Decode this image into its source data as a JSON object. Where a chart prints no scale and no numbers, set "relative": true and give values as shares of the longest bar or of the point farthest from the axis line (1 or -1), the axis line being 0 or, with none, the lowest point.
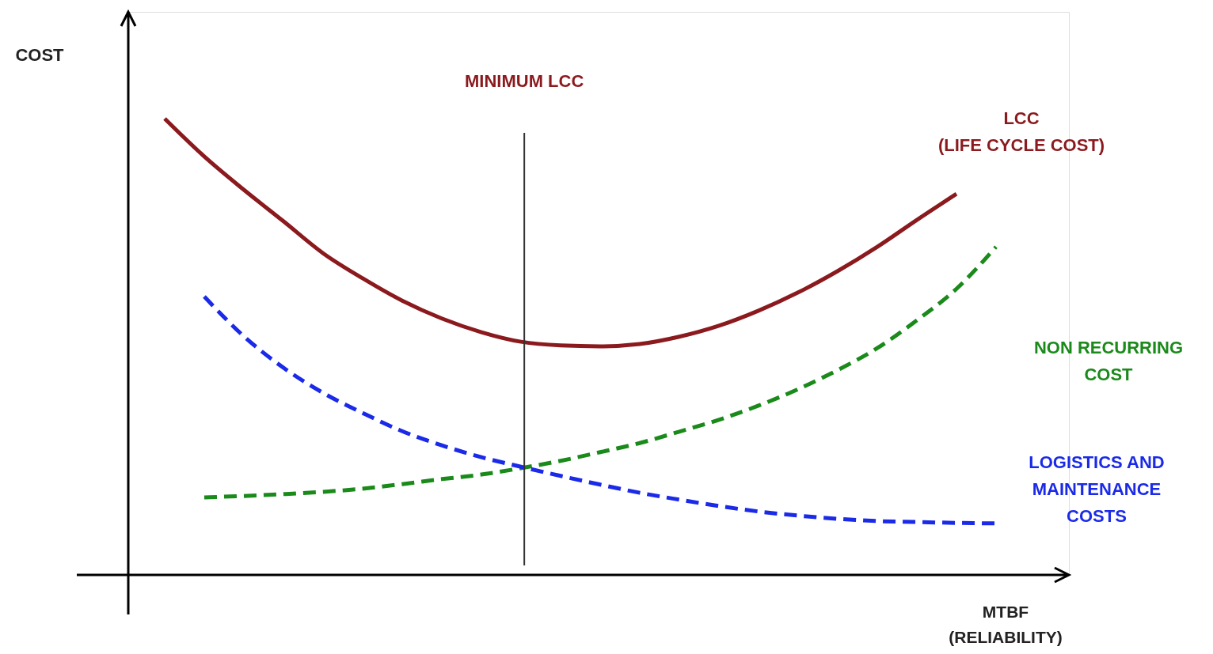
{
  "chart_data": {
    "type": "line",
    "relative": true,
    "xlabel": "MTBF\n(RELIABILITY)",
    "categories": [
      null,
      null,
      null,
      null,
      null,
      null,
      null,
      null,
      null,
      null,
      null,
      null,
      null,
      null,
      null,
      null,
      null,
      null,
      null,
      null,
      null,
      null
    ],
    "series": [
      {
        "name": "LCC\n(LIFE CYCLE COST)",
        "color": "#8b1a1e",
        "line_style": "solid",
        "values": [
          1.0,
          0.917,
          0.844,
          0.775,
          0.705,
          0.65,
          0.601,
          0.562,
          0.532,
          0.511,
          0.503,
          0.501,
          0.506,
          0.522,
          0.546,
          0.579,
          0.619,
          0.666,
          0.719,
          0.778,
          0.835,
          null
        ]
      },
      {
        "name": "NON RECURRING\nCOST",
        "color": "#1a8a1a",
        "line_style": "dashed",
        "values": [
          null,
          0.17,
          0.173,
          0.177,
          0.182,
          0.189,
          0.199,
          0.21,
          0.22,
          0.234,
          0.25,
          0.269,
          0.289,
          0.314,
          0.34,
          0.371,
          0.407,
          0.449,
          0.497,
          0.558,
          0.627,
          0.719
        ]
      },
      {
        "name": "LOGISTICS AND\nMAINTENANCE\nCOSTS",
        "color": "#1a2ae8",
        "line_style": "dashed",
        "values": [
          null,
          0.61,
          0.523,
          0.454,
          0.399,
          0.355,
          0.315,
          0.284,
          0.258,
          0.237,
          0.217,
          0.198,
          0.18,
          0.165,
          0.151,
          0.139,
          0.13,
          0.123,
          0.118,
          0.116,
          0.114,
          0.113
        ]
      }
    ],
    "annotations": [
      "MINIMUM LCC",
      "COST"
    ]
  }
}
